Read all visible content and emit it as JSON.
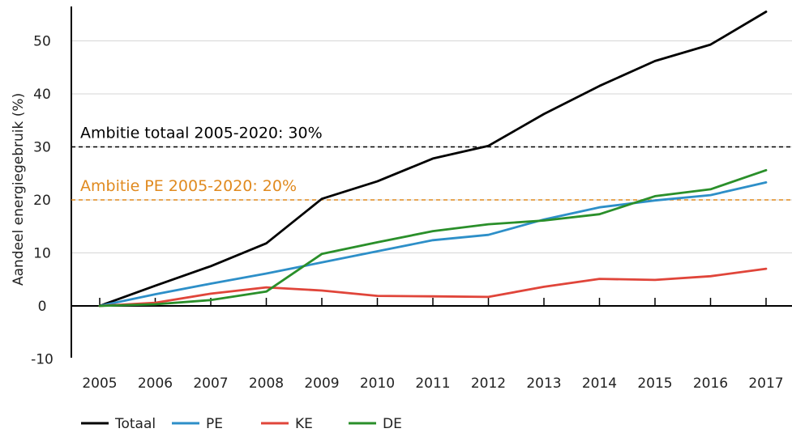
{
  "chart_data": {
    "type": "line",
    "title": "",
    "xlabel": "",
    "ylabel": "Aandeel energiegebruik (%)",
    "categories": [
      "2005",
      "2006",
      "2007",
      "2008",
      "2009",
      "2010",
      "2011",
      "2012",
      "2013",
      "2014",
      "2015",
      "2016",
      "2017"
    ],
    "ylim": [
      -10,
      55
    ],
    "yticks": [
      -10,
      0,
      10,
      20,
      30,
      40,
      50
    ],
    "ytick_labels": [
      "-10",
      "0",
      "10",
      "20",
      "30",
      "40",
      "50"
    ],
    "grid": "horizontal",
    "legend_position": "bottom-left",
    "series": [
      {
        "name": "Totaal",
        "color": "#000000",
        "values": [
          0,
          3.8,
          7.5,
          11.8,
          20.2,
          23.5,
          27.8,
          30.2,
          36.2,
          41.5,
          46.2,
          49.3,
          55.5
        ]
      },
      {
        "name": "PE",
        "color": "#2d8fc8",
        "values": [
          0,
          2.2,
          4.2,
          6.1,
          8.2,
          10.3,
          12.4,
          13.4,
          16.3,
          18.6,
          19.9,
          20.9,
          23.3
        ]
      },
      {
        "name": "KE",
        "color": "#e0453a",
        "values": [
          0,
          0.6,
          2.3,
          3.5,
          2.9,
          1.9,
          1.8,
          1.7,
          3.6,
          5.1,
          4.9,
          5.6,
          7.0
        ]
      },
      {
        "name": "DE",
        "color": "#2a8f2a",
        "values": [
          0,
          0.3,
          1.1,
          2.7,
          9.8,
          12.0,
          14.1,
          15.4,
          16.1,
          17.3,
          20.7,
          22.0,
          25.6
        ]
      }
    ],
    "reference_lines": [
      {
        "label": "Ambitie totaal 2005-2020: 30%",
        "value": 30,
        "color": "#000000"
      },
      {
        "label": "Ambitie PE 2005-2020: 20%",
        "value": 20,
        "color": "#e08a1f"
      }
    ]
  }
}
